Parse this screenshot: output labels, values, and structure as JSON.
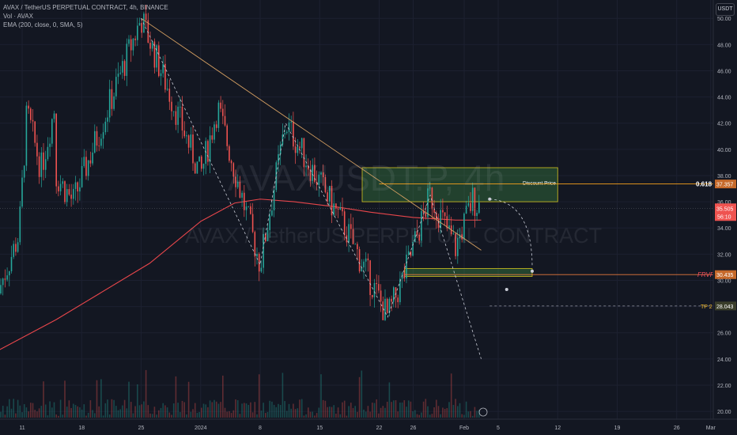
{
  "legend": {
    "symbol_line": "AVAX / TetherUS PERPETUAL CONTRACT, 4h, BINANCE",
    "volume_line": "Vol · AVAX",
    "ema_line": "EMA (200, close, 0, SMA, 5)"
  },
  "currency_button": "USDT",
  "watermark": {
    "ticker": "AVAXUSDT.P, 4h",
    "description": "AVAX / TetherUS PERPETUAL CONTRACT"
  },
  "colors": {
    "background": "#131722",
    "up": "#26a69a",
    "down": "#ef5350",
    "ema": "#e8464b",
    "trendline": "#d6a062",
    "fib_line": "#f7a21b",
    "zone_fill": "#4caf50",
    "zone_border": "#d4c31f",
    "tp": "#fbc02d"
  },
  "chart_data": {
    "type": "candlestick",
    "interval": "4h",
    "ylim": [
      19.4,
      51.4
    ],
    "y_ticks": [
      "20.00",
      "22.00",
      "24.00",
      "26.00",
      "28.00",
      "30.00",
      "32.00",
      "34.00",
      "36.00",
      "38.00",
      "40.00",
      "42.00",
      "44.00",
      "46.00",
      "48.00",
      "50.00"
    ],
    "x_ticks": [
      "11",
      "18",
      "25",
      "2024",
      "8",
      "15",
      "22",
      "26",
      "Feb",
      "5",
      "12",
      "19",
      "26",
      "Mar"
    ],
    "key_points": [
      {
        "date": "2023-12-08",
        "price": 31.5
      },
      {
        "date": "2023-12-12",
        "price": 41.0
      },
      {
        "date": "2023-12-17",
        "price": 36.0
      },
      {
        "date": "2023-12-25",
        "price": 50.0
      },
      {
        "date": "2024-01-01",
        "price": 38.0
      },
      {
        "date": "2024-01-03",
        "price": 43.2
      },
      {
        "date": "2024-01-08",
        "price": 31.2
      },
      {
        "date": "2024-01-11",
        "price": 42.0
      },
      {
        "date": "2024-01-18",
        "price": 34.0
      },
      {
        "date": "2024-01-23",
        "price": 27.2
      },
      {
        "date": "2024-01-25",
        "price": 30.5
      },
      {
        "date": "2024-01-28",
        "price": 36.5
      },
      {
        "date": "2024-01-31",
        "price": 32.5
      },
      {
        "date": "2024-02-02",
        "price": 36.2
      },
      {
        "date": "2024-02-03",
        "price": 35.5
      }
    ],
    "ema200": [
      {
        "date": "2023-12-04",
        "price": 23.2
      },
      {
        "date": "2023-12-15",
        "price": 27.0
      },
      {
        "date": "2023-12-26",
        "price": 31.3
      },
      {
        "date": "2024-01-01",
        "price": 34.5
      },
      {
        "date": "2024-01-05",
        "price": 35.9
      },
      {
        "date": "2024-01-08",
        "price": 36.2
      },
      {
        "date": "2024-01-12",
        "price": 36.0
      },
      {
        "date": "2024-01-17",
        "price": 35.6
      },
      {
        "date": "2024-01-21",
        "price": 35.2
      },
      {
        "date": "2024-01-26",
        "price": 34.8
      },
      {
        "date": "2024-01-31",
        "price": 34.6
      },
      {
        "date": "2024-02-03",
        "price": 34.6
      }
    ],
    "annotations": {
      "discount_zone": {
        "label": "Discount Price",
        "price_top": 38.6,
        "price_bottom": 36.0,
        "date_start": "2024-01-20",
        "date_end": "2024-02-12"
      },
      "fib_0618": {
        "label": "0.618",
        "price": 37.357,
        "price_label": "37.357"
      },
      "current_price": {
        "price_label": "35.505",
        "timer": "56:10"
      },
      "frvp": {
        "label": "FRVP",
        "price": 30.435,
        "price_label": "30.435"
      },
      "frvp_zone": {
        "price_top": 30.9,
        "price_bottom": 30.3,
        "date_start": "2024-01-25",
        "date_end": "2024-02-09"
      },
      "tp2": {
        "label": "TP 2",
        "price": 28.043,
        "price_label": "28.043"
      }
    }
  }
}
